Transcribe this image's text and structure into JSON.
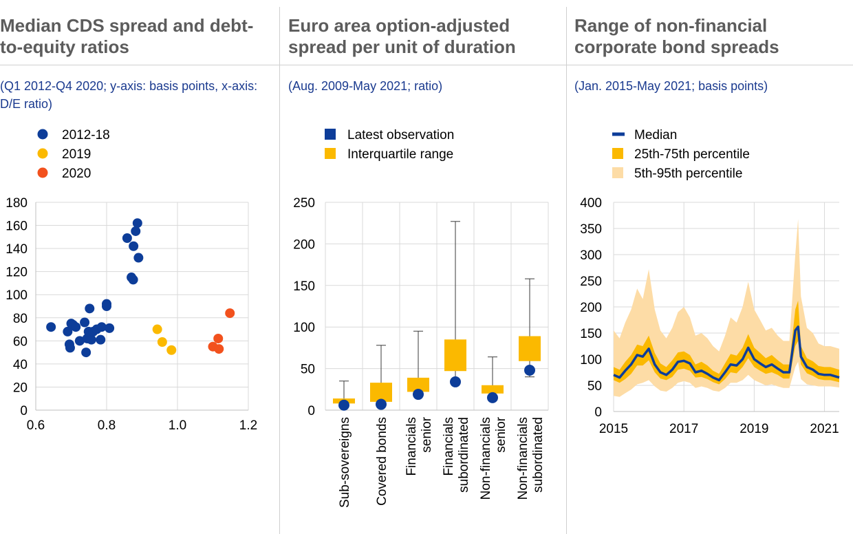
{
  "chart_data": [
    {
      "type": "scatter",
      "title": "Median CDS spread and debt-to-equity ratios",
      "subtitle": "(Q1 2012-Q4 2020; y-axis: basis points, x-axis: D/E ratio)",
      "xlabel": "D/E ratio",
      "ylabel": "basis points",
      "xlim": [
        0.6,
        1.2
      ],
      "ylim": [
        0,
        180
      ],
      "xticks": [
        "0.6",
        "0.8",
        "1.0",
        "1.2"
      ],
      "yticks": [
        "0",
        "20",
        "40",
        "60",
        "80",
        "100",
        "120",
        "140",
        "160",
        "180"
      ],
      "series": [
        {
          "name": "2012-18",
          "color": "#0d3d99",
          "points": [
            [
              0.643,
              72
            ],
            [
              0.69,
              68
            ],
            [
              0.695,
              57
            ],
            [
              0.697,
              54
            ],
            [
              0.7,
              75
            ],
            [
              0.705,
              74
            ],
            [
              0.713,
              72
            ],
            [
              0.724,
              60
            ],
            [
              0.738,
              76
            ],
            [
              0.742,
              50
            ],
            [
              0.745,
              62
            ],
            [
              0.749,
              68
            ],
            [
              0.752,
              88
            ],
            [
              0.757,
              61
            ],
            [
              0.762,
              68
            ],
            [
              0.772,
              70
            ],
            [
              0.783,
              61
            ],
            [
              0.786,
              72
            ],
            [
              0.8,
              92
            ],
            [
              0.8,
              90
            ],
            [
              0.808,
              71
            ],
            [
              0.858,
              149
            ],
            [
              0.87,
              115
            ],
            [
              0.875,
              113
            ],
            [
              0.876,
              142
            ],
            [
              0.882,
              155
            ],
            [
              0.887,
              162
            ],
            [
              0.89,
              132
            ]
          ]
        },
        {
          "name": "2019",
          "color": "#fbb900",
          "points": [
            [
              0.943,
              70
            ],
            [
              0.957,
              59
            ],
            [
              0.983,
              52
            ]
          ]
        },
        {
          "name": "2020",
          "color": "#f2511d",
          "points": [
            [
              1.1,
              55
            ],
            [
              1.115,
              62
            ],
            [
              1.117,
              53
            ],
            [
              1.148,
              84
            ]
          ]
        }
      ]
    },
    {
      "type": "box",
      "title": "Euro area option-adjusted spread per unit of duration",
      "subtitle": "(Aug. 2009-May 2021; ratio)",
      "ylim": [
        0,
        250
      ],
      "yticks": [
        "0",
        "50",
        "100",
        "150",
        "200",
        "250"
      ],
      "legend": [
        {
          "name": "Latest observation",
          "color": "#0d3d99"
        },
        {
          "name": "Interquartile range",
          "color": "#fbb900"
        }
      ],
      "categories": [
        {
          "line1": "Sub-sovereigns",
          "line2": "",
          "q1": 8,
          "q3": 14,
          "min": 5,
          "max": 35,
          "latest": 6
        },
        {
          "line1": "Covered bonds",
          "line2": "",
          "q1": 10,
          "q3": 33,
          "min": 8,
          "max": 78,
          "latest": 7
        },
        {
          "line1": "Financials",
          "line2": "senior",
          "q1": 22,
          "q3": 39,
          "min": 18,
          "max": 95,
          "latest": 19
        },
        {
          "line1": "Financials",
          "line2": "subordinated",
          "q1": 47,
          "q3": 85,
          "min": 35,
          "max": 227,
          "latest": 34
        },
        {
          "line1": "Non-financials",
          "line2": "senior",
          "q1": 20,
          "q3": 30,
          "min": 15,
          "max": 64,
          "latest": 15
        },
        {
          "line1": "Non-financials",
          "line2": "subordinated",
          "q1": 59,
          "q3": 89,
          "min": 40,
          "max": 158,
          "latest": 48
        }
      ]
    },
    {
      "type": "area",
      "title": "Range of non-financial corporate bond spreads",
      "subtitle": "(Jan. 2015-May 2021; basis points)",
      "ylim": [
        0,
        400
      ],
      "yticks": [
        "0",
        "50",
        "100",
        "150",
        "200",
        "250",
        "300",
        "350",
        "400"
      ],
      "xlim": [
        2015,
        2021.42
      ],
      "xticks": [
        "2015",
        "2017",
        "2019",
        "2021"
      ],
      "legend": [
        {
          "name": "Median",
          "color": "#0d3d99"
        },
        {
          "name": "25th-75th percentile",
          "color": "#fbb900"
        },
        {
          "name": "5th-95th percentile",
          "color": "#fddca6"
        }
      ],
      "x": [
        2015.0,
        2015.17,
        2015.33,
        2015.5,
        2015.67,
        2015.83,
        2016.0,
        2016.17,
        2016.33,
        2016.5,
        2016.67,
        2016.83,
        2017.0,
        2017.17,
        2017.33,
        2017.5,
        2017.67,
        2017.83,
        2018.0,
        2018.17,
        2018.33,
        2018.5,
        2018.67,
        2018.83,
        2019.0,
        2019.17,
        2019.33,
        2019.5,
        2019.67,
        2019.83,
        2020.0,
        2020.17,
        2020.25,
        2020.33,
        2020.5,
        2020.67,
        2020.83,
        2021.0,
        2021.17,
        2021.42
      ],
      "median": [
        70,
        65,
        78,
        90,
        108,
        105,
        120,
        90,
        75,
        70,
        80,
        95,
        97,
        92,
        75,
        78,
        72,
        65,
        60,
        75,
        90,
        88,
        100,
        122,
        100,
        92,
        85,
        90,
        82,
        75,
        75,
        155,
        162,
        105,
        85,
        80,
        72,
        70,
        70,
        65
      ],
      "p25": [
        60,
        55,
        62,
        72,
        88,
        88,
        98,
        75,
        63,
        60,
        66,
        80,
        82,
        78,
        65,
        66,
        62,
        56,
        52,
        62,
        75,
        73,
        85,
        102,
        85,
        78,
        72,
        75,
        70,
        63,
        63,
        125,
        135,
        90,
        73,
        68,
        62,
        60,
        60,
        56
      ],
      "p75": [
        85,
        80,
        95,
        108,
        128,
        125,
        145,
        112,
        92,
        85,
        98,
        113,
        115,
        108,
        90,
        95,
        88,
        78,
        72,
        92,
        110,
        107,
        122,
        148,
        122,
        112,
        102,
        108,
        98,
        90,
        90,
        195,
        212,
        125,
        102,
        96,
        87,
        85,
        85,
        80
      ],
      "p5": [
        30,
        28,
        35,
        42,
        52,
        55,
        60,
        48,
        40,
        38,
        45,
        55,
        58,
        55,
        45,
        48,
        45,
        40,
        38,
        45,
        55,
        55,
        60,
        70,
        60,
        55,
        50,
        52,
        48,
        45,
        45,
        85,
        95,
        62,
        52,
        50,
        48,
        48,
        48,
        46
      ],
      "p95": [
        155,
        140,
        170,
        195,
        235,
        215,
        272,
        195,
        155,
        140,
        160,
        190,
        200,
        180,
        145,
        150,
        140,
        125,
        115,
        145,
        180,
        170,
        200,
        248,
        195,
        175,
        155,
        160,
        145,
        135,
        135,
        300,
        368,
        220,
        160,
        150,
        130,
        125,
        125,
        120
      ]
    }
  ]
}
